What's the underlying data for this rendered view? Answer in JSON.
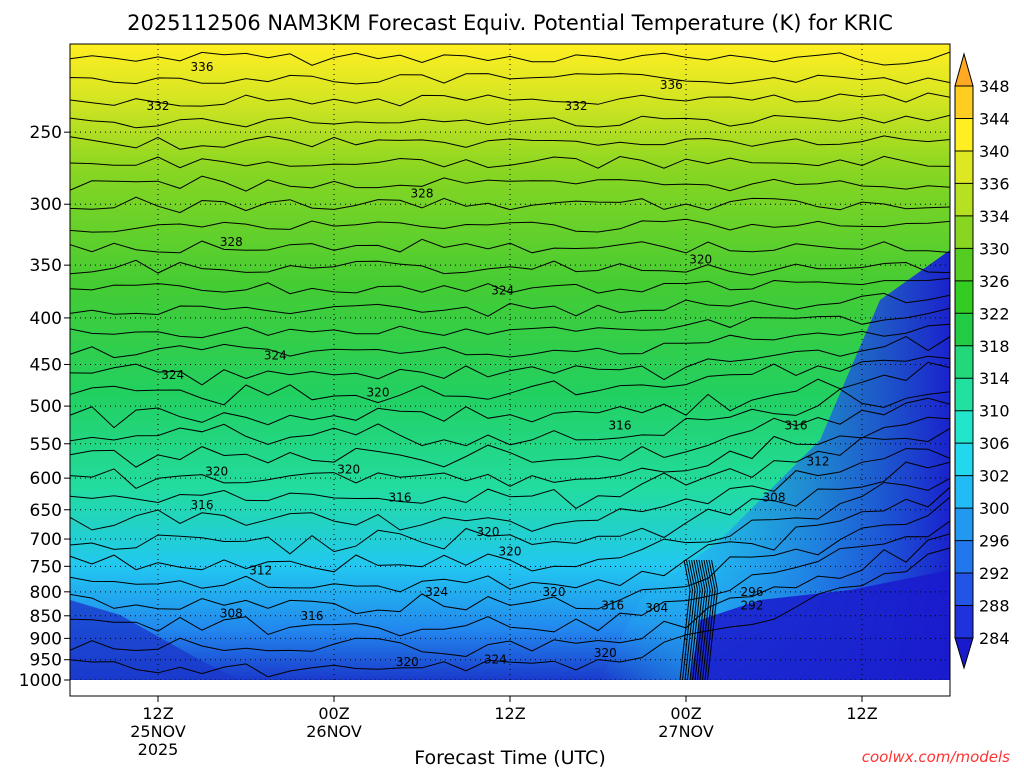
{
  "chart_data": {
    "type": "heatmap",
    "title": "2025112506 NAM3KM Forecast Equiv. Potential Temperature (K) for KRIC",
    "xlabel": "Forecast Time (UTC)",
    "ylabel": "",
    "y_axis": {
      "scale": "log-pressure",
      "reversed": true,
      "ticks": [
        250,
        300,
        350,
        400,
        450,
        500,
        550,
        600,
        650,
        700,
        750,
        800,
        850,
        900,
        950,
        1000
      ],
      "range": [
        1000,
        200
      ]
    },
    "x_axis": {
      "range_hours": [
        0,
        60
      ],
      "ticks": [
        {
          "hour": 6,
          "label": "12Z",
          "sub": "25NOV",
          "sub2": "2025"
        },
        {
          "hour": 18,
          "label": "00Z",
          "sub": "26NOV",
          "sub2": ""
        },
        {
          "hour": 30,
          "label": "12Z",
          "sub": "",
          "sub2": ""
        },
        {
          "hour": 42,
          "label": "00Z",
          "sub": "27NOV",
          "sub2": ""
        },
        {
          "hour": 54,
          "label": "12Z",
          "sub": "",
          "sub2": ""
        }
      ]
    },
    "colorbar": {
      "levels": [
        284,
        288,
        292,
        296,
        300,
        302,
        306,
        310,
        314,
        318,
        322,
        326,
        330,
        334,
        336,
        340,
        344,
        348
      ],
      "colors": [
        "#1a1acc",
        "#1f33dd",
        "#2255e6",
        "#2277ee",
        "#2299f0",
        "#22bbf5",
        "#22d8ee",
        "#22e6cc",
        "#22e0a0",
        "#22d87a",
        "#22cc44",
        "#33cc22",
        "#55cc22",
        "#88d622",
        "#b6e022",
        "#dde822",
        "#ffee22",
        "#ffcc22",
        "#ffaa22"
      ],
      "grid": false
    },
    "contour_labels": [
      {
        "text": "336",
        "hour": 9,
        "p": 212
      },
      {
        "text": "336",
        "hour": 41,
        "p": 222
      },
      {
        "text": "332",
        "hour": 6,
        "p": 234
      },
      {
        "text": "332",
        "hour": 34.5,
        "p": 234
      },
      {
        "text": "328",
        "hour": 24,
        "p": 292
      },
      {
        "text": "328",
        "hour": 11,
        "p": 330
      },
      {
        "text": "324",
        "hour": 29.5,
        "p": 373
      },
      {
        "text": "320",
        "hour": 43,
        "p": 345
      },
      {
        "text": "324",
        "hour": 14,
        "p": 440
      },
      {
        "text": "324",
        "hour": 7,
        "p": 462
      },
      {
        "text": "320",
        "hour": 21,
        "p": 483
      },
      {
        "text": "316",
        "hour": 37.5,
        "p": 525
      },
      {
        "text": "316",
        "hour": 49.5,
        "p": 525
      },
      {
        "text": "320",
        "hour": 10,
        "p": 590
      },
      {
        "text": "320",
        "hour": 19,
        "p": 587
      },
      {
        "text": "312",
        "hour": 51,
        "p": 575
      },
      {
        "text": "316",
        "hour": 9,
        "p": 642
      },
      {
        "text": "316",
        "hour": 22.5,
        "p": 630
      },
      {
        "text": "308",
        "hour": 48,
        "p": 630
      },
      {
        "text": "320",
        "hour": 28.5,
        "p": 688
      },
      {
        "text": "320",
        "hour": 30,
        "p": 722
      },
      {
        "text": "312",
        "hour": 13,
        "p": 758
      },
      {
        "text": "296",
        "hour": 46.5,
        "p": 800
      },
      {
        "text": "320",
        "hour": 33,
        "p": 800
      },
      {
        "text": "324",
        "hour": 25,
        "p": 800
      },
      {
        "text": "316",
        "hour": 37,
        "p": 828
      },
      {
        "text": "292",
        "hour": 46.5,
        "p": 828
      },
      {
        "text": "304",
        "hour": 40,
        "p": 833
      },
      {
        "text": "308",
        "hour": 11,
        "p": 845
      },
      {
        "text": "316",
        "hour": 16.5,
        "p": 850
      },
      {
        "text": "320",
        "hour": 36.5,
        "p": 934
      },
      {
        "text": "320",
        "hour": 23,
        "p": 955
      },
      {
        "text": "324",
        "hour": 29,
        "p": 950
      }
    ]
  },
  "watermark": "coolwx.com/models"
}
